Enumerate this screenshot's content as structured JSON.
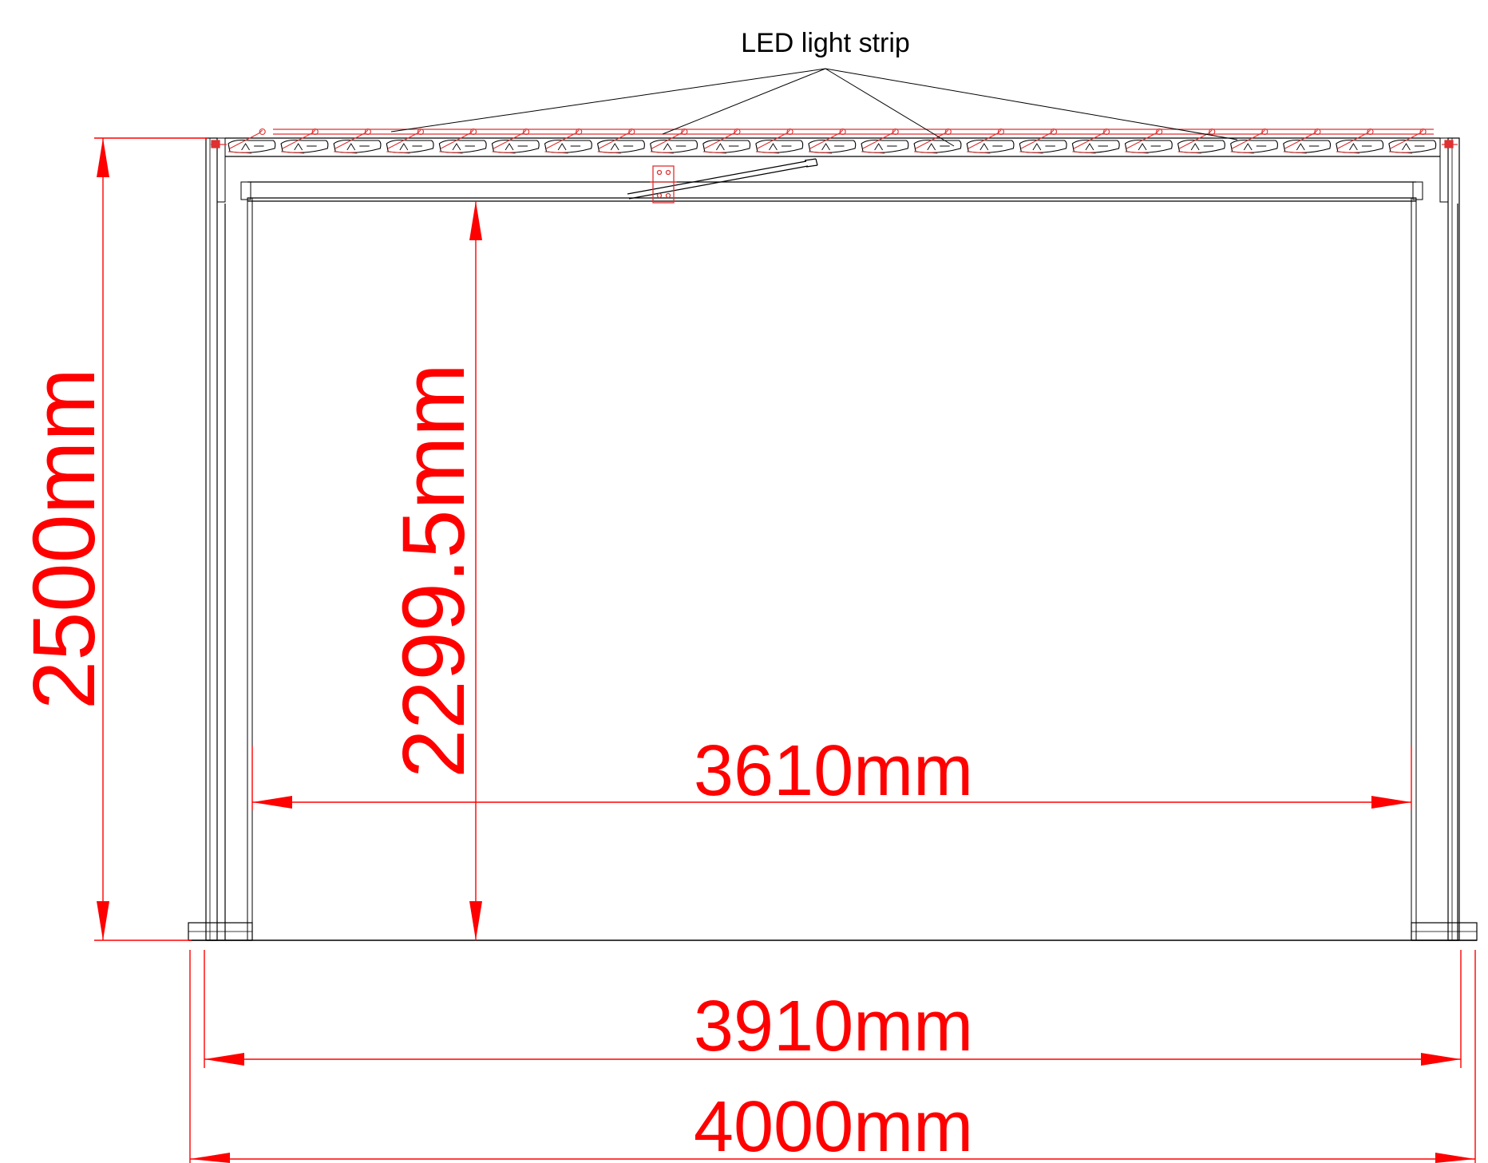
{
  "callout": {
    "label": "LED light strip"
  },
  "dimensions": {
    "overall_height": "2500mm",
    "clear_height": "2299.5mm",
    "clear_width": "3610mm",
    "post_to_post_width": "3910mm",
    "overall_width": "4000mm"
  },
  "colors": {
    "dimension": "#ff0000",
    "structure": "#000000",
    "led_highlight": "#e03030"
  },
  "roof": {
    "louver_count": 23
  }
}
